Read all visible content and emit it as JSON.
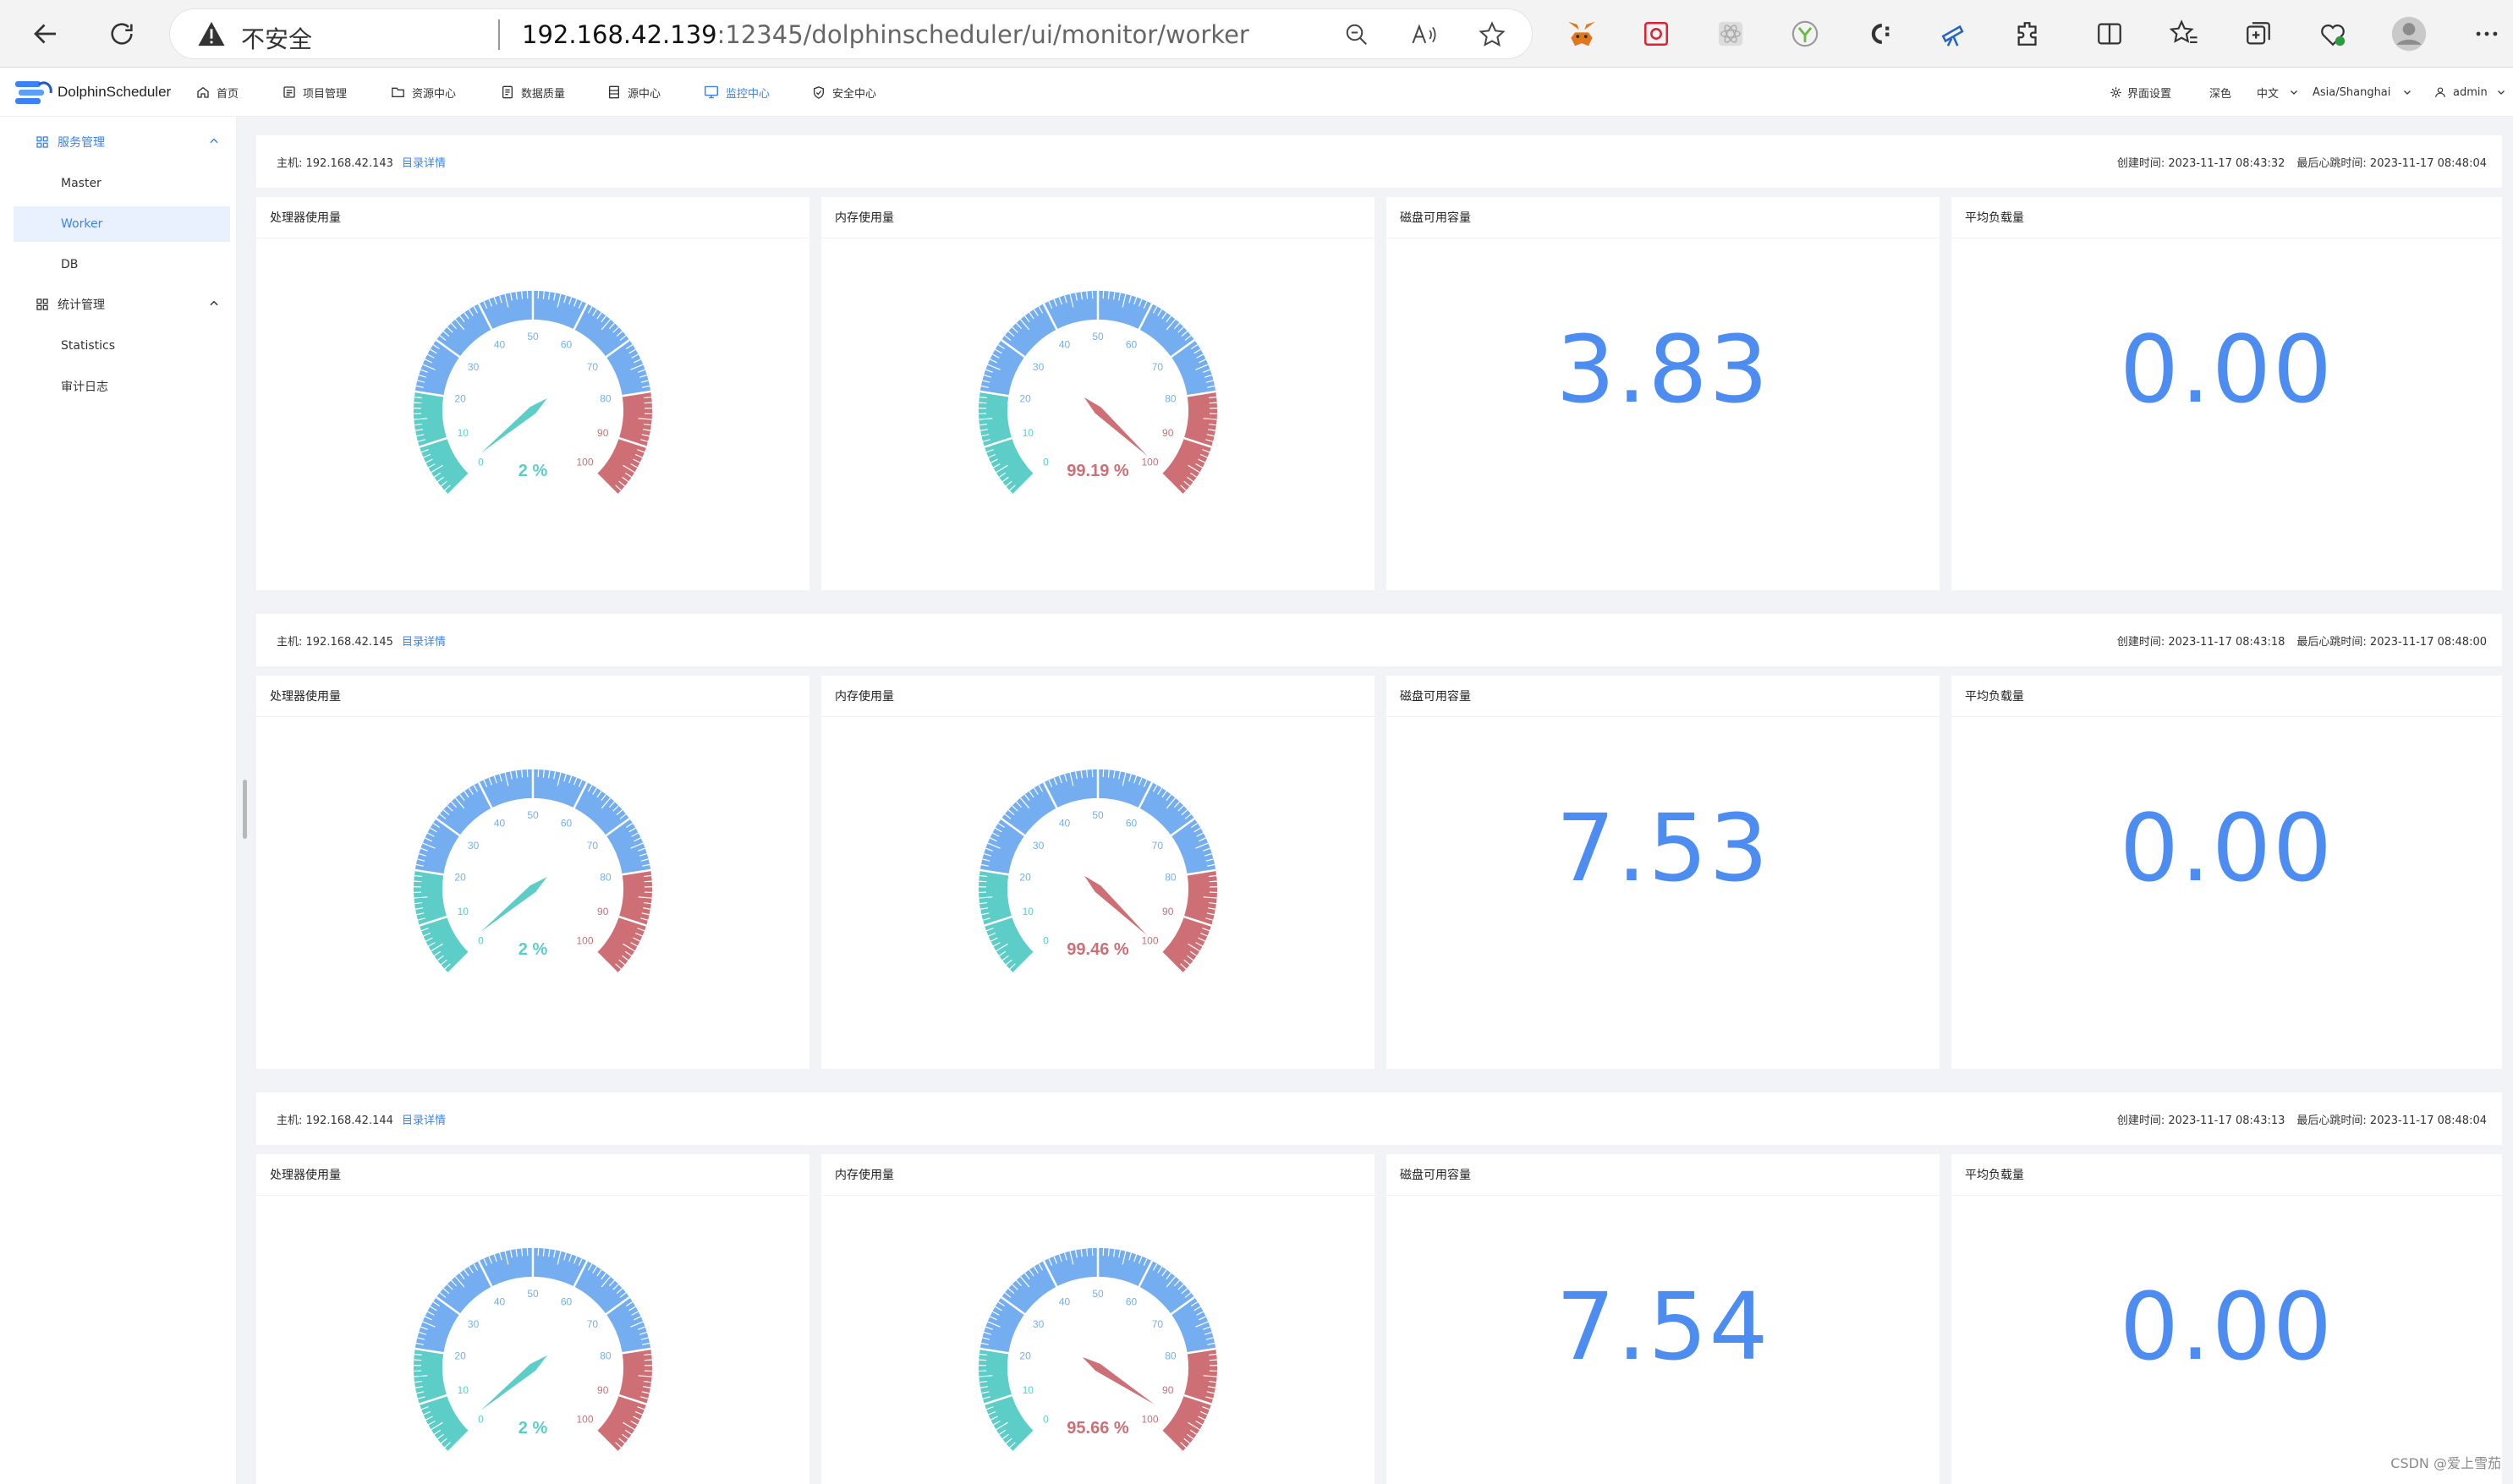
{
  "browser": {
    "insecure_label": "不安全",
    "url_host": "192.168.42.139",
    "url_rest": ":12345/dolphinscheduler/ui/monitor/worker"
  },
  "app": {
    "logo_text": "DolphinScheduler",
    "menu": [
      "首页",
      "项目管理",
      "资源中心",
      "数据质量",
      "源中心",
      "监控中心",
      "安全中心"
    ],
    "right": {
      "ui_settings": "界面设置",
      "theme": "深色",
      "language": "中文",
      "timezone": "Asia/Shanghai",
      "user": "admin"
    }
  },
  "sidebar": {
    "group1": "服务管理",
    "items1": [
      "Master",
      "Worker",
      "DB"
    ],
    "group2": "统计管理",
    "items2": [
      "Statistics",
      "审计日志"
    ]
  },
  "labels": {
    "cpu": "处理器使用量",
    "mem": "内存使用量",
    "disk": "磁盘可用容量",
    "load": "平均负载量",
    "detail": "目录详情"
  },
  "hosts": [
    {
      "host_label": "主机: 192.168.42.143",
      "created": "创建时间: 2023-11-17 08:43:32",
      "heartbeat": "最后心跳时间: 2023-11-17 08:48:04",
      "cpu": 2,
      "cpu_text": "2 %",
      "mem": 99.19,
      "mem_text": "99.19 %",
      "disk": "3.83",
      "load": "0.00"
    },
    {
      "host_label": "主机: 192.168.42.145",
      "created": "创建时间: 2023-11-17 08:43:18",
      "heartbeat": "最后心跳时间: 2023-11-17 08:48:00",
      "cpu": 2,
      "cpu_text": "2 %",
      "mem": 99.46,
      "mem_text": "99.46 %",
      "disk": "7.53",
      "load": "0.00"
    },
    {
      "host_label": "主机: 192.168.42.144",
      "created": "创建时间: 2023-11-17 08:43:13",
      "heartbeat": "最后心跳时间: 2023-11-17 08:48:04",
      "cpu": 2,
      "cpu_text": "2 %",
      "mem": 95.66,
      "mem_text": "95.66 %",
      "disk": "7.54",
      "load": "0.00"
    }
  ],
  "gauge": {
    "ticks": [
      "0",
      "10",
      "20",
      "30",
      "40",
      "50",
      "60",
      "70",
      "80",
      "90",
      "100"
    ],
    "colors": {
      "low": "#5ccdc7",
      "mid": "#74aef0",
      "high": "#cd6f74"
    }
  },
  "watermark": "CSDN @爱上雪茄"
}
